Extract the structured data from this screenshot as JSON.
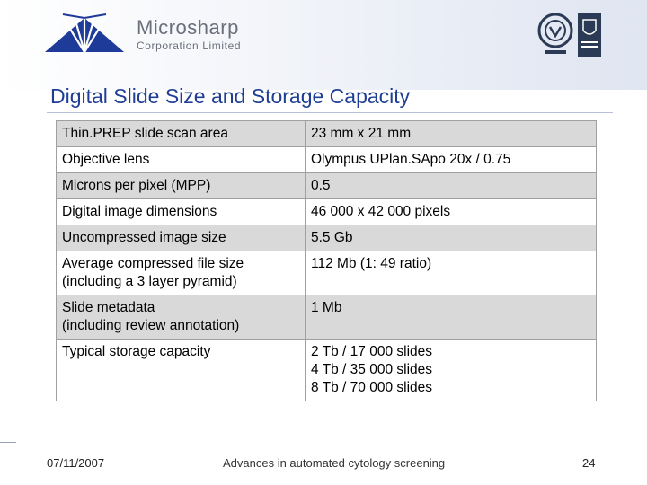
{
  "brand": {
    "name": "Microsharp",
    "subtitle": "Corporation Limited"
  },
  "slide": {
    "title": "Digital Slide Size and Storage Capacity"
  },
  "table": {
    "rows": [
      {
        "label": [
          "Thin.PREP slide scan area"
        ],
        "value": [
          "23 mm x 21 mm"
        ],
        "shaded": true
      },
      {
        "label": [
          "Objective lens"
        ],
        "value": [
          "Olympus UPlan.SApo 20x / 0.75"
        ],
        "shaded": false
      },
      {
        "label": [
          "Microns per pixel (MPP)"
        ],
        "value": [
          "0.5"
        ],
        "shaded": true
      },
      {
        "label": [
          "Digital image dimensions"
        ],
        "value": [
          "46 000 x 42 000 pixels"
        ],
        "shaded": false
      },
      {
        "label": [
          "Uncompressed image size"
        ],
        "value": [
          "5.5 Gb"
        ],
        "shaded": true
      },
      {
        "label": [
          "Average compressed file size",
          "(including a 3 layer pyramid)"
        ],
        "value": [
          "112 Mb (1: 49 ratio)"
        ],
        "shaded": false
      },
      {
        "label": [
          "Slide metadata",
          "(including review annotation)"
        ],
        "value": [
          "1 Mb"
        ],
        "shaded": true
      },
      {
        "label": [
          "Typical  storage capacity"
        ],
        "value": [
          "2 Tb / 17 000 slides",
          "4 Tb / 35 000 slides",
          "8 Tb / 70 000 slides"
        ],
        "shaded": false
      }
    ]
  },
  "footer": {
    "date": "07/11/2007",
    "center": "Advances in automated cytology screening",
    "page": "24"
  },
  "colors": {
    "title": "#1f3f94",
    "logo": "#1e3b9a",
    "row_shade": "#d9d9d9"
  },
  "icons": [
    "microsharp-logo-icon",
    "certification-seal-icon",
    "ukas-badge-icon"
  ]
}
